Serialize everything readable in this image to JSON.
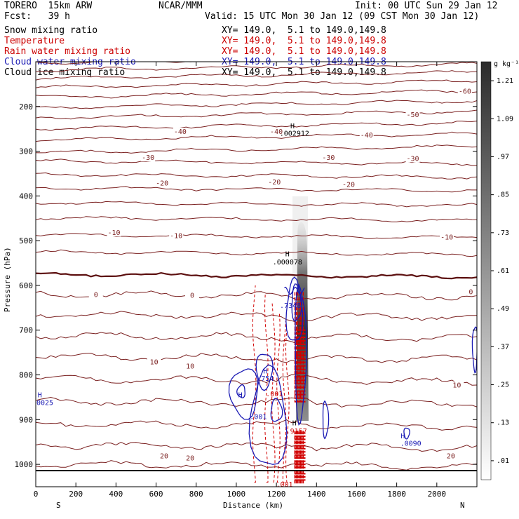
{
  "header": {
    "model": "TORERO  15km ARW",
    "center": "NCAR/MMM",
    "init": "Init: 00 UTC Sun 29 Jan 12",
    "fcst": "Fcst:   39 h",
    "valid": "Valid: 15 UTC Mon 30 Jan 12 (09 CST Mon 30 Jan 12)"
  },
  "fields": [
    {
      "name": "Snow mixing ratio",
      "xy": "XY= 149.0,  5.1 to 149.0,149.8",
      "color": "#000000"
    },
    {
      "name": "Temperature",
      "xy": "XY= 149.0,  5.1 to 149.0,149.8",
      "color": "#cc0000"
    },
    {
      "name": "Rain water mixing ratio",
      "xy": "XY= 149.0,  5.1 to 149.0,149.8",
      "color": "#cc0000"
    },
    {
      "name": "Cloud water mixing ratio",
      "xy": "XY= 149.0,  5.1 to 149.0,149.8",
      "color": "#1a1ab4"
    },
    {
      "name": "Cloud ice mixing ratio",
      "xy": "XY= 149.0,  5.1 to 149.0,149.8",
      "color": "#000000"
    }
  ],
  "chart_data": {
    "type": "contour",
    "xlabel": "Distance (km)",
    "ylabel": "Pressure (hPa)",
    "xlim": [
      0,
      2200
    ],
    "ylim": [
      1050,
      100
    ],
    "x_ticks": [
      "0",
      "200",
      "400",
      "600",
      "800",
      "1000",
      "1200",
      "1400",
      "1600",
      "1800",
      "2000"
    ],
    "x_tick_values": [
      0,
      200,
      400,
      600,
      800,
      1000,
      1200,
      1400,
      1600,
      1800,
      2000
    ],
    "y_ticks": [
      "200",
      "300",
      "400",
      "500",
      "600",
      "700",
      "800",
      "900",
      "1000"
    ],
    "y_tick_values": [
      200,
      300,
      400,
      500,
      600,
      700,
      800,
      900,
      1000
    ],
    "endpoints": {
      "left": "S",
      "right": "N"
    },
    "colorbar": {
      "unit": "g kg⁻¹",
      "labels": [
        ".01",
        ".13",
        ".25",
        ".37",
        ".49",
        ".61",
        ".73",
        ".85",
        ".97",
        "1.09",
        "1.21"
      ]
    },
    "temperature_labels": [
      {
        "text": "-60",
        "x": 2140,
        "p": 170
      },
      {
        "text": "-50",
        "x": 1880,
        "p": 222
      },
      {
        "text": "-40",
        "x": 720,
        "p": 260
      },
      {
        "text": "-40",
        "x": 1200,
        "p": 260
      },
      {
        "text": "-40",
        "x": 1650,
        "p": 268
      },
      {
        "text": "-30",
        "x": 560,
        "p": 318
      },
      {
        "text": "-30",
        "x": 1460,
        "p": 318
      },
      {
        "text": "-30",
        "x": 1880,
        "p": 320
      },
      {
        "text": "-20",
        "x": 630,
        "p": 375
      },
      {
        "text": "-20",
        "x": 1190,
        "p": 373
      },
      {
        "text": "-20",
        "x": 1560,
        "p": 378
      },
      {
        "text": "-10",
        "x": 390,
        "p": 486
      },
      {
        "text": "-10",
        "x": 700,
        "p": 493
      },
      {
        "text": "-10",
        "x": 2050,
        "p": 496
      },
      {
        "text": "0",
        "x": 300,
        "p": 624
      },
      {
        "text": "0",
        "x": 780,
        "p": 626
      },
      {
        "text": "0",
        "x": 2170,
        "p": 618
      },
      {
        "text": "10",
        "x": 590,
        "p": 775
      },
      {
        "text": "10",
        "x": 770,
        "p": 784
      },
      {
        "text": "10",
        "x": 2100,
        "p": 827
      },
      {
        "text": "20",
        "x": 640,
        "p": 985
      },
      {
        "text": "20",
        "x": 770,
        "p": 990
      },
      {
        "text": "20",
        "x": 2070,
        "p": 985
      }
    ],
    "annotations": [
      {
        "text": "H",
        "x": 1280,
        "p": 249,
        "color": "#000000"
      },
      {
        "text": ".002912",
        "x": 1290,
        "p": 265,
        "color": "#000000"
      },
      {
        "text": "H",
        "x": 1255,
        "p": 535,
        "color": "#000000"
      },
      {
        "text": ".000078",
        "x": 1255,
        "p": 553,
        "color": "#000000"
      },
      {
        "text": ".7348",
        "x": 1270,
        "p": 650,
        "color": "#1a1ab4"
      },
      {
        "text": "H",
        "x": 1145,
        "p": 797,
        "color": "#1a1ab4"
      },
      {
        "text": ".754",
        "x": 1145,
        "p": 813,
        "color": "#1a1ab4"
      },
      {
        "text": ".001",
        "x": 1190,
        "p": 848,
        "color": "#cc0000"
      },
      {
        "text": ".001",
        "x": 1110,
        "p": 899,
        "color": "#1a1ab4"
      },
      {
        "text": "H",
        "x": 1020,
        "p": 850,
        "color": "#1a1ab4"
      },
      {
        "text": ".0025",
        "x": 35,
        "p": 867,
        "color": "#1a1ab4"
      },
      {
        "text": "H",
        "x": 20,
        "p": 850,
        "color": "#1a1ab4"
      },
      {
        "text": "H",
        "x": 1290,
        "p": 913,
        "color": "#000000"
      },
      {
        "text": ".9157",
        "x": 1300,
        "p": 931,
        "color": "#cc0000"
      },
      {
        "text": ".001",
        "x": 1240,
        "p": 1050,
        "color": "#cc0000"
      },
      {
        "text": "H",
        "x": 1830,
        "p": 942,
        "color": "#1a1ab4"
      },
      {
        "text": ".0090",
        "x": 1870,
        "p": 958,
        "color": "#1a1ab4"
      }
    ]
  }
}
